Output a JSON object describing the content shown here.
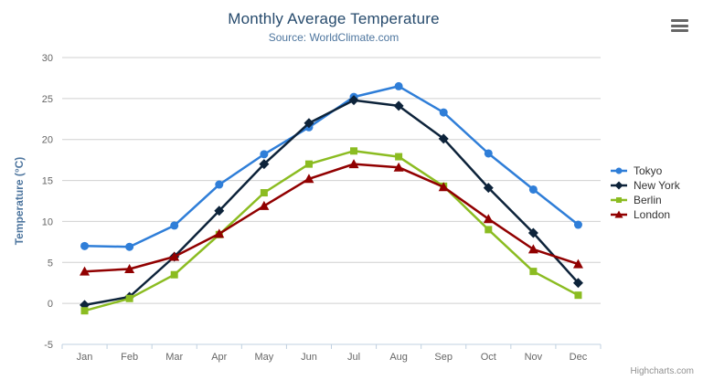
{
  "header": {
    "title": "Monthly Average Temperature",
    "subtitle": "Source: WorldClimate.com"
  },
  "credits": {
    "label": "Highcharts.com"
  },
  "icons": {
    "context_menu": "hamburger-icon"
  },
  "colors": {
    "title": "#274b6d",
    "subtitle": "#4d759e",
    "axis_label": "#666666",
    "axis_title": "#4d759e",
    "gridline": "#d0d0d0",
    "x_axis_line": "#c0d0e0",
    "legend_text": "#333333",
    "credits_text": "#909090"
  },
  "chart_data": {
    "type": "line",
    "title": "Monthly Average Temperature",
    "subtitle": "Source: WorldClimate.com",
    "categories": [
      "Jan",
      "Feb",
      "Mar",
      "Apr",
      "May",
      "Jun",
      "Jul",
      "Aug",
      "Sep",
      "Oct",
      "Nov",
      "Dec"
    ],
    "series": [
      {
        "name": "Tokyo",
        "color": "#2f7ed8",
        "marker": "circle",
        "values": [
          7.0,
          6.9,
          9.5,
          14.5,
          18.2,
          21.5,
          25.2,
          26.5,
          23.3,
          18.3,
          13.9,
          9.6
        ]
      },
      {
        "name": "New York",
        "color": "#0d233a",
        "marker": "diamond",
        "values": [
          -0.2,
          0.8,
          5.7,
          11.3,
          17.0,
          22.0,
          24.8,
          24.1,
          20.1,
          14.1,
          8.6,
          2.5
        ]
      },
      {
        "name": "Berlin",
        "color": "#8bbc21",
        "marker": "square",
        "values": [
          -0.9,
          0.6,
          3.5,
          8.4,
          13.5,
          17.0,
          18.6,
          17.9,
          14.3,
          9.0,
          3.9,
          1.0
        ]
      },
      {
        "name": "London",
        "color": "#910000",
        "marker": "triangle",
        "values": [
          3.9,
          4.2,
          5.7,
          8.5,
          11.9,
          15.2,
          17.0,
          16.6,
          14.2,
          10.3,
          6.6,
          4.8
        ]
      }
    ],
    "xlabel": "",
    "ylabel": "Temperature (°C)",
    "ylim": [
      -5,
      30
    ],
    "ytick_step": 5,
    "yticks": [
      -5,
      0,
      5,
      10,
      15,
      20,
      25,
      30
    ],
    "grid": "horizontal",
    "legend_position": "right-middle"
  }
}
